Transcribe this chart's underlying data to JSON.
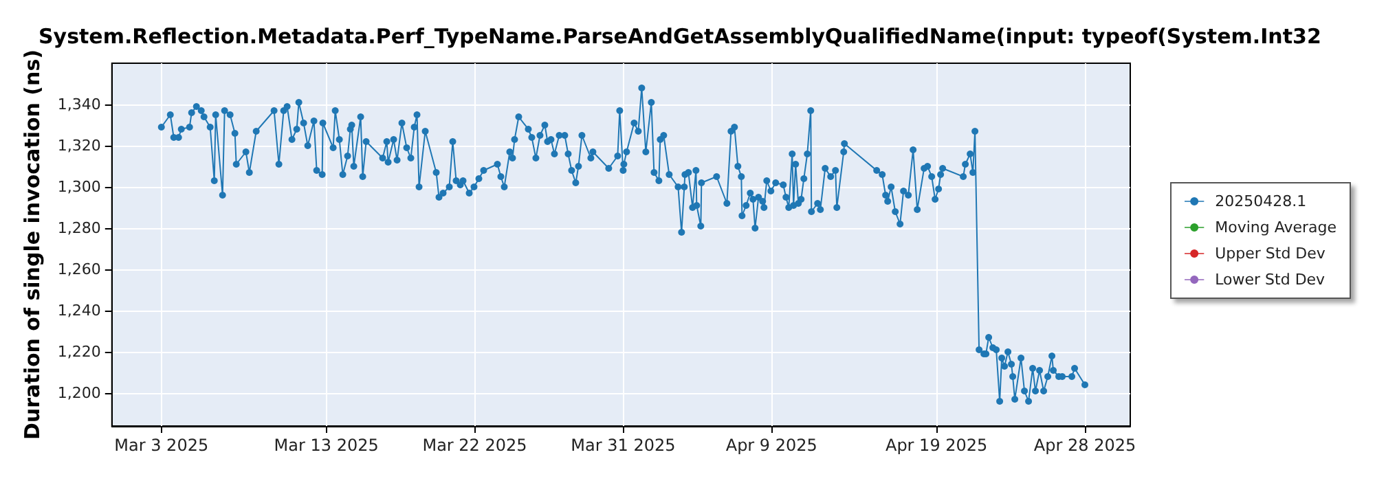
{
  "chart_data": {
    "type": "line",
    "title": "System.Reflection.Metadata.Perf_TypeName.ParseAndGetAssemblyQualifiedName(input: typeof(System.Int32",
    "ylabel": "Duration of single invocation (ns)",
    "x": [
      "2025-03-03T00:00",
      "2025-03-03T13:00",
      "2025-03-03T18:00",
      "2025-03-04T01:00",
      "2025-03-04T05:00",
      "2025-03-04T17:00",
      "2025-03-04T20:00",
      "2025-03-05T03:00",
      "2025-03-05T10:00",
      "2025-03-05T14:00",
      "2025-03-05T23:00",
      "2025-03-06T05:00",
      "2025-03-06T07:00",
      "2025-03-06T17:00",
      "2025-03-06T20:00",
      "2025-03-07T04:00",
      "2025-03-07T11:00",
      "2025-03-07T13:00",
      "2025-03-08T03:00",
      "2025-03-08T08:00",
      "2025-03-08T18:00",
      "2025-03-09T20:00",
      "2025-03-10T03:00",
      "2025-03-10T10:00",
      "2025-03-10T15:00",
      "2025-03-10T22:00",
      "2025-03-11T05:00",
      "2025-03-11T08:00",
      "2025-03-11T15:00",
      "2025-03-11T21:00",
      "2025-03-12T06:00",
      "2025-03-12T10:00",
      "2025-03-12T18:00",
      "2025-03-12T19:00",
      "2025-03-13T10:00",
      "2025-03-13T13:00",
      "2025-03-13T19:00",
      "2025-03-14T00:00",
      "2025-03-14T07:00",
      "2025-03-14T11:00",
      "2025-03-14T13:00",
      "2025-03-14T16:00",
      "2025-03-15T02:00",
      "2025-03-15T05:00",
      "2025-03-15T10:00",
      "2025-03-16T10:00",
      "2025-03-16T16:00",
      "2025-03-16T18:00",
      "2025-03-17T02:00",
      "2025-03-17T07:00",
      "2025-03-17T14:00",
      "2025-03-17T21:00",
      "2025-03-18T03:00",
      "2025-03-18T08:00",
      "2025-03-18T12:00",
      "2025-03-18T15:00",
      "2025-03-19T00:00",
      "2025-03-19T16:00",
      "2025-03-19T20:00",
      "2025-03-20T02:00",
      "2025-03-20T11:00",
      "2025-03-20T16:00",
      "2025-03-20T21:00",
      "2025-03-21T03:00",
      "2025-03-21T07:00",
      "2025-03-21T16:00",
      "2025-03-21T23:00",
      "2025-03-22T06:00",
      "2025-03-22T13:00",
      "2025-03-23T09:00",
      "2025-03-23T14:00",
      "2025-03-23T19:00",
      "2025-03-24T03:00",
      "2025-03-24T07:00",
      "2025-03-24T10:00",
      "2025-03-24T16:00",
      "2025-03-25T06:00",
      "2025-03-25T11:00",
      "2025-03-25T17:00",
      "2025-03-25T23:00",
      "2025-03-26T06:00",
      "2025-03-26T10:00",
      "2025-03-26T15:00",
      "2025-03-26T20:00",
      "2025-03-27T03:00",
      "2025-03-27T11:00",
      "2025-03-27T16:00",
      "2025-03-27T21:00",
      "2025-03-28T03:00",
      "2025-03-28T07:00",
      "2025-03-28T12:00",
      "2025-03-29T01:00",
      "2025-03-29T04:00",
      "2025-03-30T03:00",
      "2025-03-30T16:00",
      "2025-03-30T19:00",
      "2025-03-31T00:00",
      "2025-03-31T01:00",
      "2025-03-31T05:00",
      "2025-03-31T16:00",
      "2025-03-31T22:00",
      "2025-04-01T03:00",
      "2025-04-01T09:00",
      "2025-04-01T17:00",
      "2025-04-01T21:00",
      "2025-04-02T04:00",
      "2025-04-02T06:00",
      "2025-04-02T11:00",
      "2025-04-02T19:00",
      "2025-04-03T08:00",
      "2025-04-03T13:00",
      "2025-04-03T17:00",
      "2025-04-03T18:00",
      "2025-04-03T23:00",
      "2025-04-04T05:00",
      "2025-04-04T10:00",
      "2025-04-04T11:00",
      "2025-04-04T17:00",
      "2025-04-04T18:00",
      "2025-04-05T16:00",
      "2025-04-06T07:00",
      "2025-04-06T13:00",
      "2025-04-06T18:00",
      "2025-04-06T23:00",
      "2025-04-07T04:00",
      "2025-04-07T05:00",
      "2025-04-07T11:00",
      "2025-04-07T17:00",
      "2025-04-07T21:00",
      "2025-04-08T00:00",
      "2025-04-08T05:00",
      "2025-04-08T11:00",
      "2025-04-08T13:00",
      "2025-04-08T17:00",
      "2025-04-08T23:00",
      "2025-04-09T06:00",
      "2025-04-09T17:00",
      "2025-04-09T21:00",
      "2025-04-10T01:00",
      "2025-04-10T06:00",
      "2025-04-10T08:00",
      "2025-04-10T11:00",
      "2025-04-10T15:00",
      "2025-04-10T19:00",
      "2025-04-10T23:00",
      "2025-04-11T04:00",
      "2025-04-11T09:00",
      "2025-04-11T10:00",
      "2025-04-11T19:00",
      "2025-04-11T23:00",
      "2025-04-12T06:00",
      "2025-04-12T14:00",
      "2025-04-12T21:00",
      "2025-04-12T23:00",
      "2025-04-13T09:00",
      "2025-04-13T10:00",
      "2025-04-15T09:00",
      "2025-04-15T17:00",
      "2025-04-15T22:00",
      "2025-04-16T01:00",
      "2025-04-16T06:00",
      "2025-04-16T12:00",
      "2025-04-16T19:00",
      "2025-04-17T00:00",
      "2025-04-17T07:00",
      "2025-04-17T14:00",
      "2025-04-17T20:00",
      "2025-04-18T06:00",
      "2025-04-18T11:00",
      "2025-04-18T17:00",
      "2025-04-18T22:00",
      "2025-04-19T03:00",
      "2025-04-19T06:00",
      "2025-04-19T09:00",
      "2025-04-20T15:00",
      "2025-04-20T18:00",
      "2025-04-21T01:00",
      "2025-04-21T05:00",
      "2025-04-21T08:00",
      "2025-04-21T14:00",
      "2025-04-21T21:00",
      "2025-04-22T00:00",
      "2025-04-22T04:00",
      "2025-04-22T10:00",
      "2025-04-22T15:00",
      "2025-04-22T20:00",
      "2025-04-22T23:00",
      "2025-04-23T03:00",
      "2025-04-23T08:00",
      "2025-04-23T13:00",
      "2025-04-23T15:00",
      "2025-04-23T18:00",
      "2025-04-24T03:00",
      "2025-04-24T08:00",
      "2025-04-24T14:00",
      "2025-04-24T20:00",
      "2025-04-25T00:00",
      "2025-04-25T06:00",
      "2025-04-25T12:00",
      "2025-04-25T18:00",
      "2025-04-26T00:00",
      "2025-04-26T02:00",
      "2025-04-26T10:00",
      "2025-04-26T15:00",
      "2025-04-27T05:00",
      "2025-04-27T09:00",
      "2025-04-28T00:00"
    ],
    "series": [
      {
        "name": "20250428.1",
        "color": "#1f77b4",
        "values": [
          1329,
          1335,
          1324,
          1324,
          1328,
          1329,
          1336,
          1339,
          1337,
          1334,
          1329,
          1303,
          1335,
          1296,
          1337,
          1335,
          1326,
          1311,
          1317,
          1307,
          1327,
          1337,
          1311,
          1337,
          1339,
          1323,
          1328,
          1341,
          1331,
          1320,
          1332,
          1308,
          1306,
          1331,
          1319,
          1337,
          1323,
          1306,
          1315,
          1328,
          1330,
          1310,
          1334,
          1305,
          1322,
          1314,
          1322,
          1312,
          1323,
          1313,
          1331,
          1319,
          1314,
          1329,
          1335,
          1300,
          1327,
          1307,
          1295,
          1297,
          1300,
          1322,
          1303,
          1301,
          1303,
          1297,
          1300,
          1304,
          1308,
          1311,
          1305,
          1300,
          1317,
          1314,
          1323,
          1334,
          1328,
          1324,
          1314,
          1325,
          1330,
          1322,
          1323,
          1316,
          1325,
          1325,
          1316,
          1308,
          1302,
          1310,
          1325,
          1314,
          1317,
          1309,
          1315,
          1337,
          1308,
          1311,
          1317,
          1331,
          1327,
          1348,
          1317,
          1341,
          1307,
          1303,
          1323,
          1325,
          1306,
          1300,
          1278,
          1300,
          1306,
          1307,
          1290,
          1308,
          1291,
          1281,
          1302,
          1305,
          1292,
          1327,
          1329,
          1310,
          1305,
          1286,
          1291,
          1297,
          1294,
          1280,
          1295,
          1293,
          1290,
          1303,
          1298,
          1302,
          1301,
          1295,
          1290,
          1316,
          1291,
          1311,
          1292,
          1294,
          1304,
          1316,
          1337,
          1288,
          1292,
          1289,
          1309,
          1305,
          1308,
          1290,
          1317,
          1321,
          1308,
          1306,
          1296,
          1293,
          1300,
          1288,
          1282,
          1298,
          1296,
          1318,
          1289,
          1309,
          1310,
          1305,
          1294,
          1299,
          1306,
          1309,
          1305,
          1311,
          1316,
          1307,
          1327,
          1221,
          1219,
          1219,
          1227,
          1222,
          1221,
          1196,
          1217,
          1213,
          1220,
          1214,
          1208,
          1197,
          1217,
          1201,
          1196,
          1212,
          1201,
          1211,
          1201,
          1208,
          1218,
          1211,
          1208,
          1208,
          1208,
          1212,
          1204
        ]
      },
      {
        "name": "Moving Average",
        "color": "#2ca02c",
        "values": [
          null,
          null,
          null,
          null,
          null,
          null,
          null,
          null,
          null,
          null,
          null,
          null,
          null,
          null,
          null,
          null,
          null,
          null,
          null,
          null,
          null,
          null,
          null,
          null,
          null,
          null,
          null,
          null,
          null,
          null,
          null,
          null,
          null,
          null,
          null,
          null,
          null,
          null,
          null,
          null,
          null,
          null,
          null,
          null,
          null,
          null,
          null,
          null,
          null,
          null,
          null,
          null,
          null,
          null,
          null,
          null,
          null,
          null,
          null,
          null,
          null,
          null,
          null,
          null,
          null,
          null,
          null,
          null,
          null,
          null,
          null,
          null,
          null,
          null,
          null,
          null,
          null,
          null,
          null,
          null,
          null,
          null,
          null,
          null,
          null,
          null,
          null,
          null,
          null,
          null,
          null,
          null,
          null,
          null,
          null,
          null,
          null,
          null,
          null,
          null,
          null,
          null,
          null,
          null,
          null,
          null,
          null,
          null,
          null,
          null,
          null,
          null,
          null,
          null,
          null,
          null,
          null,
          null,
          null,
          null,
          null,
          null,
          null,
          null,
          null,
          null,
          null,
          null,
          null,
          null,
          null,
          null,
          null,
          null,
          null,
          null,
          null,
          null,
          null,
          null,
          null,
          null,
          null,
          null,
          null,
          null,
          null,
          null,
          null,
          null,
          null,
          null,
          null,
          null,
          null,
          null,
          null,
          null,
          null,
          null,
          null,
          null,
          null,
          null,
          null,
          null,
          null,
          null,
          null,
          null,
          null,
          null,
          null,
          null,
          null,
          null,
          null,
          null,
          null,
          null,
          null,
          null,
          null,
          null,
          null,
          null,
          null,
          null,
          null,
          null,
          null,
          null,
          null,
          null,
          null,
          null,
          null,
          null,
          null,
          null,
          null,
          null,
          null,
          null,
          null,
          null,
          null
        ]
      },
      {
        "name": "Upper Std Dev",
        "color": "#d62728",
        "values": [
          null,
          null,
          null,
          null,
          null,
          null,
          null,
          null,
          null,
          null,
          null,
          null,
          null,
          null,
          null,
          null,
          null,
          null,
          null,
          null,
          null,
          null,
          null,
          null,
          null,
          null,
          null,
          null,
          null,
          null,
          null,
          null,
          null,
          null,
          null,
          null,
          null,
          null,
          null,
          null,
          null,
          null,
          null,
          null,
          null,
          null,
          null,
          null,
          null,
          null,
          null,
          null,
          null,
          null,
          null,
          null,
          null,
          null,
          null,
          null,
          null,
          null,
          null,
          null,
          null,
          null,
          null,
          null,
          null,
          null,
          null,
          null,
          null,
          null,
          null,
          null,
          null,
          null,
          null,
          null,
          null,
          null,
          null,
          null,
          null,
          null,
          null,
          null,
          null,
          null,
          null,
          null,
          null,
          null,
          null,
          null,
          null,
          null,
          null,
          null,
          null,
          null,
          null,
          null,
          null,
          null,
          null,
          null,
          null,
          null,
          null,
          null,
          null,
          null,
          null,
          null,
          null,
          null,
          null,
          null,
          null,
          null,
          null,
          null,
          null,
          null,
          null,
          null,
          null,
          null,
          null,
          null,
          null,
          null,
          null,
          null,
          null,
          null,
          null,
          null,
          null,
          null,
          null,
          null,
          null,
          null,
          null,
          null,
          null,
          null,
          null,
          null,
          null,
          null,
          null,
          null,
          null,
          null,
          null,
          null,
          null,
          null,
          null,
          null,
          null,
          null,
          null,
          null,
          null,
          null,
          null,
          null,
          null,
          null,
          null,
          null,
          null,
          null,
          null,
          null,
          null,
          null,
          null,
          null,
          null,
          null,
          null,
          null,
          null,
          null,
          null,
          null,
          null,
          null,
          null,
          null,
          null,
          null,
          null,
          null,
          null,
          null,
          null,
          null,
          null,
          null,
          null
        ]
      },
      {
        "name": "Lower Std Dev",
        "color": "#9467bd",
        "values": [
          null,
          null,
          null,
          null,
          null,
          null,
          null,
          null,
          null,
          null,
          null,
          null,
          null,
          null,
          null,
          null,
          null,
          null,
          null,
          null,
          null,
          null,
          null,
          null,
          null,
          null,
          null,
          null,
          null,
          null,
          null,
          null,
          null,
          null,
          null,
          null,
          null,
          null,
          null,
          null,
          null,
          null,
          null,
          null,
          null,
          null,
          null,
          null,
          null,
          null,
          null,
          null,
          null,
          null,
          null,
          null,
          null,
          null,
          null,
          null,
          null,
          null,
          null,
          null,
          null,
          null,
          null,
          null,
          null,
          null,
          null,
          null,
          null,
          null,
          null,
          null,
          null,
          null,
          null,
          null,
          null,
          null,
          null,
          null,
          null,
          null,
          null,
          null,
          null,
          null,
          null,
          null,
          null,
          null,
          null,
          null,
          null,
          null,
          null,
          null,
          null,
          null,
          null,
          null,
          null,
          null,
          null,
          null,
          null,
          null,
          null,
          null,
          null,
          null,
          null,
          null,
          null,
          null,
          null,
          null,
          null,
          null,
          null,
          null,
          null,
          null,
          null,
          null,
          null,
          null,
          null,
          null,
          null,
          null,
          null,
          null,
          null,
          null,
          null,
          null,
          null,
          null,
          null,
          null,
          null,
          null,
          null,
          null,
          null,
          null,
          null,
          null,
          null,
          null,
          null,
          null,
          null,
          null,
          null,
          null,
          null,
          null,
          null,
          null,
          null,
          null,
          null,
          null,
          null,
          null,
          null,
          null,
          null,
          null,
          null,
          null,
          null,
          null,
          null,
          null,
          null,
          null,
          null,
          null,
          null,
          null,
          null,
          null,
          null,
          null,
          null,
          null,
          null,
          null,
          null,
          null,
          null,
          null,
          null,
          null,
          null,
          null,
          null,
          null,
          null,
          null,
          null
        ]
      }
    ],
    "xlim": [
      "2025-02-28",
      "2025-04-30T18:00"
    ],
    "xticks": [
      {
        "value": "2025-03-03",
        "label": "Mar 3 2025"
      },
      {
        "value": "2025-03-13",
        "label": "Mar 13 2025"
      },
      {
        "value": "2025-03-22",
        "label": "Mar 22 2025"
      },
      {
        "value": "2025-03-31",
        "label": "Mar 31 2025"
      },
      {
        "value": "2025-04-09",
        "label": "Apr 9 2025"
      },
      {
        "value": "2025-04-19",
        "label": "Apr 19 2025"
      },
      {
        "value": "2025-04-28",
        "label": "Apr 28 2025"
      }
    ],
    "ylim": [
      1184,
      1360
    ],
    "yticks": [
      {
        "value": 1200,
        "label": "1,200"
      },
      {
        "value": 1220,
        "label": "1,220"
      },
      {
        "value": 1240,
        "label": "1,240"
      },
      {
        "value": 1260,
        "label": "1,260"
      },
      {
        "value": 1280,
        "label": "1,280"
      },
      {
        "value": 1300,
        "label": "1,300"
      },
      {
        "value": 1320,
        "label": "1,320"
      },
      {
        "value": 1340,
        "label": "1,340"
      }
    ],
    "grid": true,
    "legend": "right",
    "marker": "circle",
    "line_style": "solid"
  }
}
